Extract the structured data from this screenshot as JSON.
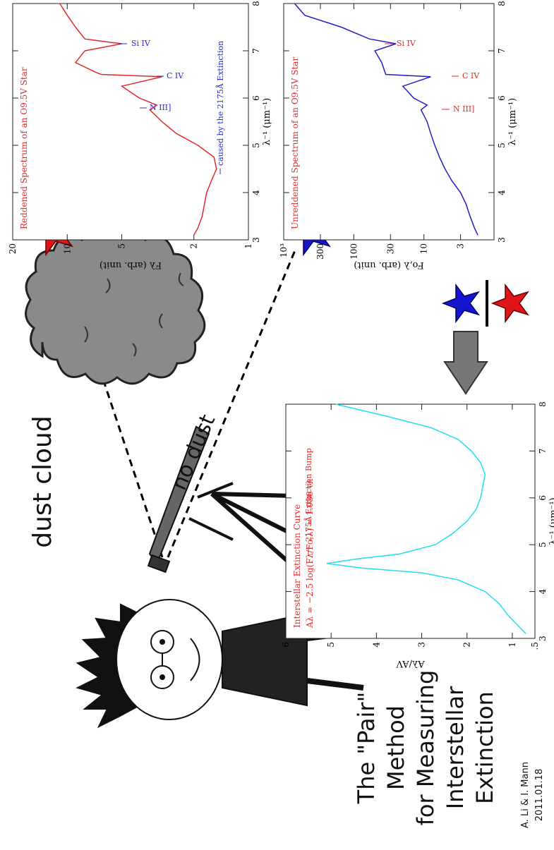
{
  "poster": {
    "title": [
      "The \"Pair\"",
      "Method",
      "for Measuring",
      "Interstellar",
      "Extinction"
    ],
    "credit": [
      "A. Li & I. Mann",
      "2011.01.18"
    ],
    "dust_label": "dust cloud",
    "no_dust_label": "no dust"
  },
  "chart_data": [
    {
      "type": "line",
      "title": "Reddened Spectrum of an O9.5V Star",
      "x_label": "λ⁻¹ (μm⁻¹)",
      "y_label": "Fλ (arb. unit)",
      "color": "#e02a2a",
      "annotation_color": "#2a2ad0",
      "annotations": [
        "caused by the 2175Å Extinction",
        "N III]",
        "C IV",
        "Si IV"
      ],
      "x": [
        3.1,
        3.25,
        3.5,
        3.75,
        4,
        4.25,
        4.5,
        4.75,
        5,
        5.25,
        5.5,
        5.75,
        5.85,
        6,
        6.25,
        6.45,
        6.5,
        6.55,
        6.75,
        7,
        7.15,
        7.25,
        7.5,
        7.75,
        8
      ],
      "values": [
        2.0,
        1.9,
        1.8,
        1.75,
        1.7,
        1.6,
        1.5,
        1.55,
        1.9,
        2.5,
        3.0,
        3.5,
        3.2,
        4.0,
        5.0,
        3.0,
        6.5,
        7.0,
        9.0,
        8.0,
        5.0,
        8.0,
        9.0,
        10.0,
        11.0
      ],
      "xlim": [
        3,
        8
      ],
      "xticks": [
        3,
        4,
        5,
        6,
        7,
        8
      ],
      "ylim": [
        1,
        20
      ],
      "yticks": [
        1,
        2,
        5,
        10,
        20
      ],
      "log_y": true
    },
    {
      "type": "line",
      "title": "Unreddened Spectrum of an O9.5V Star",
      "x_label": "λ⁻¹ (μm⁻¹)",
      "y_label": "Fo,λ (arb. unit)",
      "color": "#2020c0",
      "annotation_color": "#e02a2a",
      "annotations": [
        "N III]",
        "C IV",
        "Si IV"
      ],
      "x": [
        3.1,
        3.25,
        3.5,
        3.75,
        4,
        4.25,
        4.5,
        4.75,
        5,
        5.25,
        5.5,
        5.75,
        5.85,
        6,
        6.25,
        6.45,
        6.5,
        6.75,
        7,
        7.15,
        7.25,
        7.5,
        7.75,
        8
      ],
      "values": [
        1.7,
        1.9,
        2.2,
        2.5,
        3,
        4,
        5,
        6,
        7,
        8,
        9,
        11,
        9,
        14,
        20,
        8,
        35,
        40,
        50,
        25,
        60,
        150,
        500,
        700
      ],
      "xlim": [
        3,
        8
      ],
      "xticks": [
        3,
        4,
        5,
        6,
        7,
        8
      ],
      "ylim": [
        1,
        1000
      ],
      "yticks": [
        3,
        10,
        30,
        100,
        300,
        {
          "value": 1000,
          "label": "10³"
        }
      ],
      "log_y": true
    },
    {
      "type": "line",
      "title": "Interstellar Extinction Curve",
      "subtitle": "Aλ = −2.5 log(Fλ/Fo,λ) = 1.086 τλ",
      "x_label": "λ⁻¹ (μm⁻¹)",
      "y_label": "Aλ/AV",
      "color": "#22dff0",
      "annotation_color": "#e02a2a",
      "annotations": [
        "2175Å Extinction Bump"
      ],
      "x": [
        3.1,
        3.3,
        3.5,
        3.75,
        4,
        4.25,
        4.4,
        4.5,
        4.6,
        4.7,
        4.8,
        5,
        5.25,
        5.5,
        5.75,
        6,
        6.25,
        6.5,
        6.75,
        7,
        7.25,
        7.5,
        7.75,
        8
      ],
      "values": [
        0.7,
        0.9,
        1.1,
        1.3,
        1.6,
        2.2,
        3.0,
        4.3,
        5.1,
        4.4,
        3.5,
        2.7,
        2.3,
        2.0,
        1.8,
        1.7,
        1.65,
        1.6,
        1.7,
        1.9,
        2.2,
        2.8,
        3.8,
        4.9
      ],
      "xlim": [
        3,
        8
      ],
      "xticks": [
        3,
        4,
        5,
        6,
        7,
        8
      ],
      "ylim": [
        0.5,
        6
      ],
      "yticks": [
        {
          "value": 0.5,
          "label": ".5"
        },
        1,
        2,
        3,
        4,
        5,
        6
      ],
      "log_y": false
    }
  ]
}
